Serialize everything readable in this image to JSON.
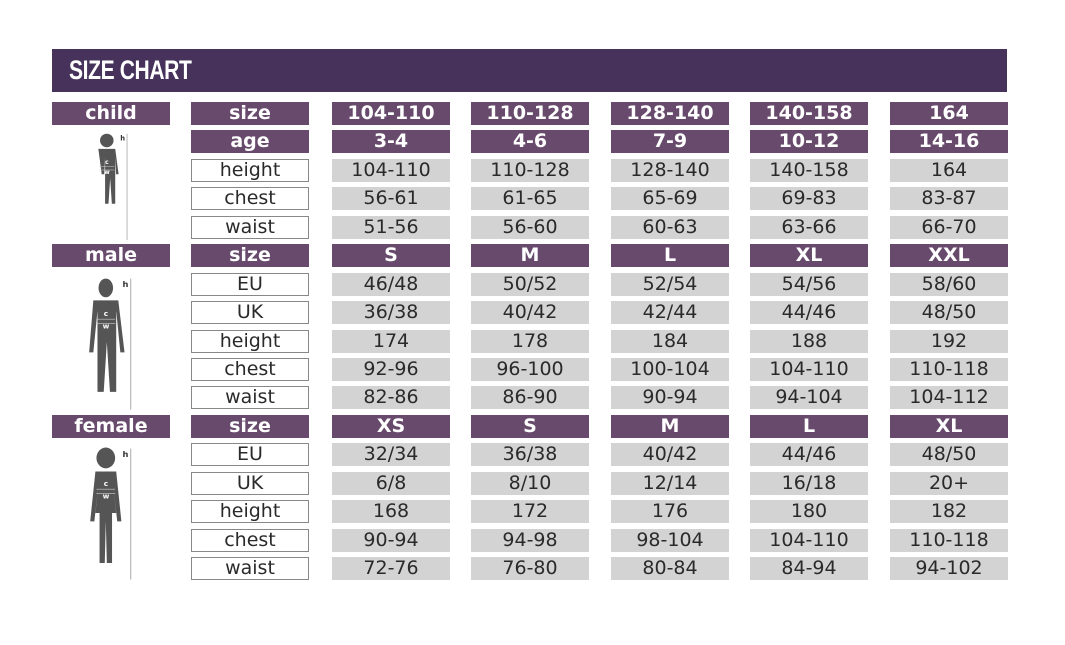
{
  "title": "SIZE CHART",
  "colors": {
    "header": "#46325a",
    "label": "#684b6c",
    "cell": "#d3d3d3"
  },
  "sections": [
    {
      "name": "child",
      "figure": "child-silhouette-icon",
      "rows": [
        {
          "label": "size",
          "type": "head",
          "values": [
            "104-110",
            "110-128",
            "128-140",
            "140-158",
            "164"
          ]
        },
        {
          "label": "age",
          "type": "head",
          "values": [
            "3-4",
            "4-6",
            "7-9",
            "10-12",
            "14-16"
          ]
        },
        {
          "label": "height",
          "type": "data",
          "values": [
            "104-110",
            "110-128",
            "128-140",
            "140-158",
            "164"
          ]
        },
        {
          "label": "chest",
          "type": "data",
          "values": [
            "56-61",
            "61-65",
            "65-69",
            "69-83",
            "83-87"
          ]
        },
        {
          "label": "waist",
          "type": "data",
          "values": [
            "51-56",
            "56-60",
            "60-63",
            "63-66",
            "66-70"
          ]
        }
      ]
    },
    {
      "name": "male",
      "figure": "male-silhouette-icon",
      "rows": [
        {
          "label": "size",
          "type": "head",
          "values": [
            "S",
            "M",
            "L",
            "XL",
            "XXL"
          ]
        },
        {
          "label": "EU",
          "type": "data",
          "values": [
            "46/48",
            "50/52",
            "52/54",
            "54/56",
            "58/60"
          ]
        },
        {
          "label": "UK",
          "type": "data",
          "values": [
            "36/38",
            "40/42",
            "42/44",
            "44/46",
            "48/50"
          ]
        },
        {
          "label": "height",
          "type": "data",
          "values": [
            "174",
            "178",
            "184",
            "188",
            "192"
          ]
        },
        {
          "label": "chest",
          "type": "data",
          "values": [
            "92-96",
            "96-100",
            "100-104",
            "104-110",
            "110-118"
          ]
        },
        {
          "label": "waist",
          "type": "data",
          "values": [
            "82-86",
            "86-90",
            "90-94",
            "94-104",
            "104-112"
          ]
        }
      ]
    },
    {
      "name": "female",
      "figure": "female-silhouette-icon",
      "rows": [
        {
          "label": "size",
          "type": "head",
          "values": [
            "XS",
            "S",
            "M",
            "L",
            "XL"
          ]
        },
        {
          "label": "EU",
          "type": "data",
          "values": [
            "32/34",
            "36/38",
            "40/42",
            "44/46",
            "48/50"
          ]
        },
        {
          "label": "UK",
          "type": "data",
          "values": [
            "6/8",
            "8/10",
            "12/14",
            "16/18",
            "20+"
          ]
        },
        {
          "label": "height",
          "type": "data",
          "values": [
            "168",
            "172",
            "176",
            "180",
            "182"
          ]
        },
        {
          "label": "chest",
          "type": "data",
          "values": [
            "90-94",
            "94-98",
            "98-104",
            "104-110",
            "110-118"
          ]
        },
        {
          "label": "waist",
          "type": "data",
          "values": [
            "72-76",
            "76-80",
            "80-84",
            "84-94",
            "94-102"
          ]
        }
      ]
    }
  ],
  "figure_marks": {
    "h": "h",
    "c": "c",
    "w": "w"
  }
}
